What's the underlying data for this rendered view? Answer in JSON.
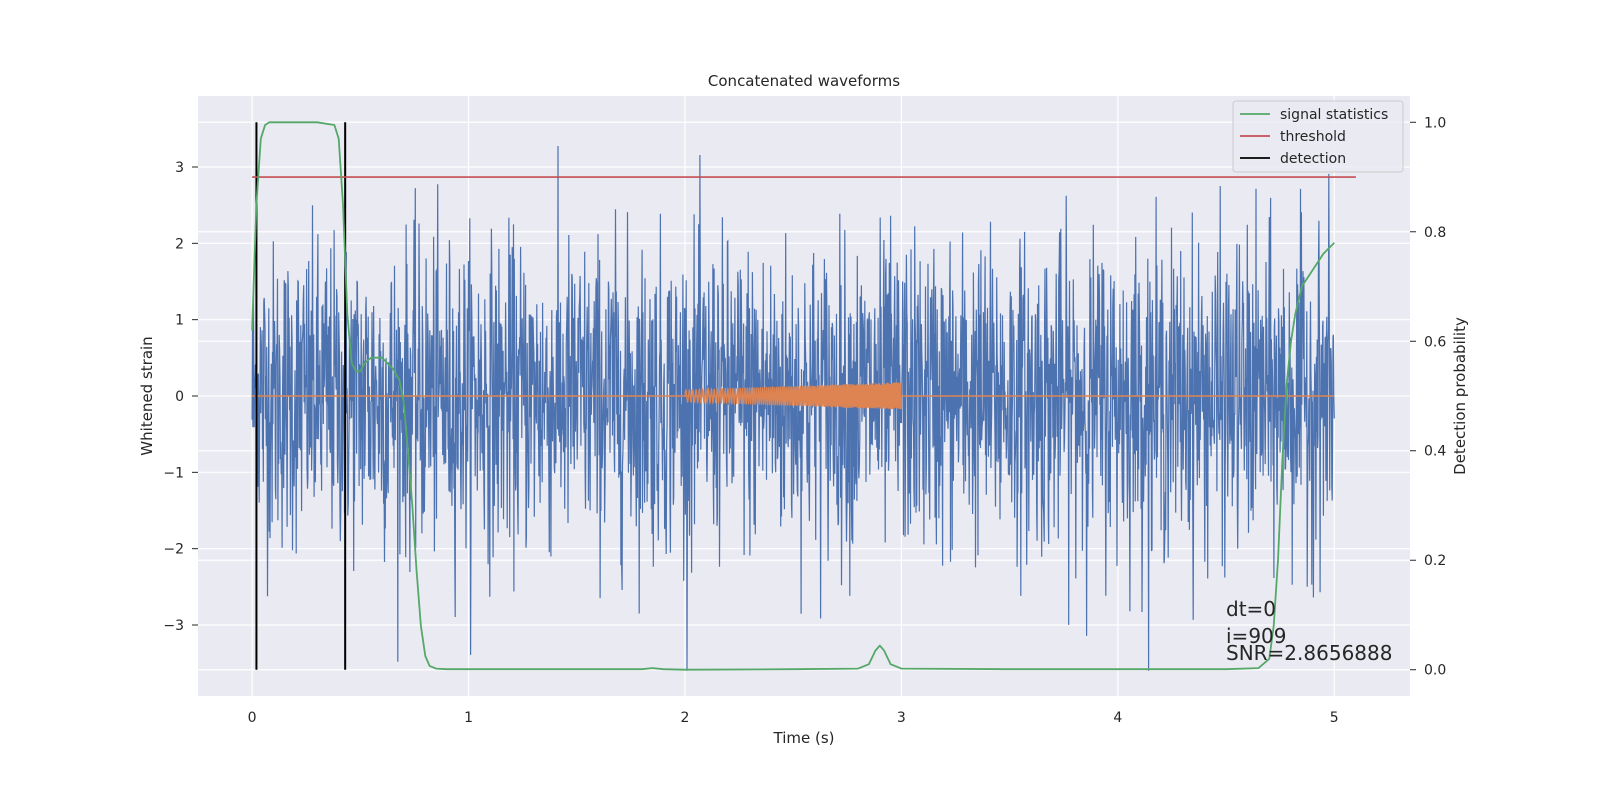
{
  "chart_data": {
    "type": "line",
    "title": "Concatenated waveforms",
    "xlabel": "Time (s)",
    "ylabel_left": "Whitened strain",
    "ylabel_right": "Detection probability",
    "xlim": [
      -0.25,
      5.35
    ],
    "ylim_left": [
      -3.93,
      3.93
    ],
    "ylim_right": [
      -0.048,
      1.048
    ],
    "x_ticks": [
      0,
      1,
      2,
      3,
      4,
      5
    ],
    "x_tick_labels": [
      "0",
      "1",
      "2",
      "3",
      "4",
      "5"
    ],
    "y_left_ticks": [
      -3,
      -2,
      -1,
      0,
      1,
      2,
      3
    ],
    "y_left_tick_labels": [
      "−3",
      "−2",
      "−1",
      "0",
      "1",
      "2",
      "3"
    ],
    "y_right_ticks": [
      0.0,
      0.2,
      0.4,
      0.6,
      0.8,
      1.0
    ],
    "y_right_tick_labels": [
      "0.0",
      "0.2",
      "0.4",
      "0.6",
      "0.8",
      "1.0"
    ],
    "grid": true,
    "legend_position": "top-right",
    "series": [
      {
        "name": "",
        "axis": "left",
        "color": "#4c72b0",
        "description_kind": "noise",
        "x_range": [
          0,
          5
        ],
        "band": 1.0,
        "peak": 3.45,
        "trough": -3.6
      },
      {
        "name": "",
        "axis": "left",
        "color": "#dd8452",
        "kind": "chirp",
        "x_range": [
          2,
          3
        ],
        "amplitude_range": [
          0.08,
          0.18
        ],
        "baseline": 0
      },
      {
        "name": "signal statistics",
        "axis": "right",
        "color": "#55a868",
        "x": [
          0.0,
          0.02,
          0.04,
          0.06,
          0.08,
          0.12,
          0.2,
          0.3,
          0.38,
          0.4,
          0.42,
          0.44,
          0.46,
          0.48,
          0.5,
          0.52,
          0.55,
          0.6,
          0.65,
          0.68,
          0.7,
          0.72,
          0.74,
          0.76,
          0.78,
          0.8,
          0.82,
          0.85,
          0.9,
          1.0,
          1.5,
          1.8,
          1.85,
          1.9,
          2.0,
          2.5,
          2.8,
          2.85,
          2.88,
          2.9,
          2.92,
          2.95,
          3.0,
          3.5,
          4.0,
          4.5,
          4.65,
          4.7,
          4.72,
          4.74,
          4.76,
          4.78,
          4.8,
          4.82,
          4.85,
          4.9,
          4.95,
          5.0
        ],
        "y": [
          0.62,
          0.85,
          0.97,
          0.995,
          1.0,
          1.0,
          1.0,
          1.0,
          0.995,
          0.97,
          0.85,
          0.65,
          0.56,
          0.545,
          0.545,
          0.56,
          0.57,
          0.57,
          0.55,
          0.53,
          0.49,
          0.4,
          0.3,
          0.18,
          0.08,
          0.025,
          0.007,
          0.002,
          0.001,
          0.001,
          0.001,
          0.001,
          0.003,
          0.001,
          0.0,
          0.001,
          0.002,
          0.01,
          0.035,
          0.044,
          0.035,
          0.01,
          0.002,
          0.001,
          0.001,
          0.001,
          0.003,
          0.02,
          0.08,
          0.2,
          0.38,
          0.52,
          0.6,
          0.65,
          0.7,
          0.73,
          0.76,
          0.78
        ]
      },
      {
        "name": "threshold",
        "axis": "right",
        "color": "#c44e52",
        "x": [
          0,
          5.1
        ],
        "y": [
          0.9,
          0.9
        ]
      },
      {
        "name": "detection",
        "axis": "right",
        "color": "#000000",
        "kind": "vlines",
        "x": [
          0.02,
          0.43
        ],
        "y": [
          0.0,
          1.0
        ]
      }
    ],
    "annotations": [
      "dt=0",
      "i=909",
      "SNR=2.8656888"
    ]
  }
}
